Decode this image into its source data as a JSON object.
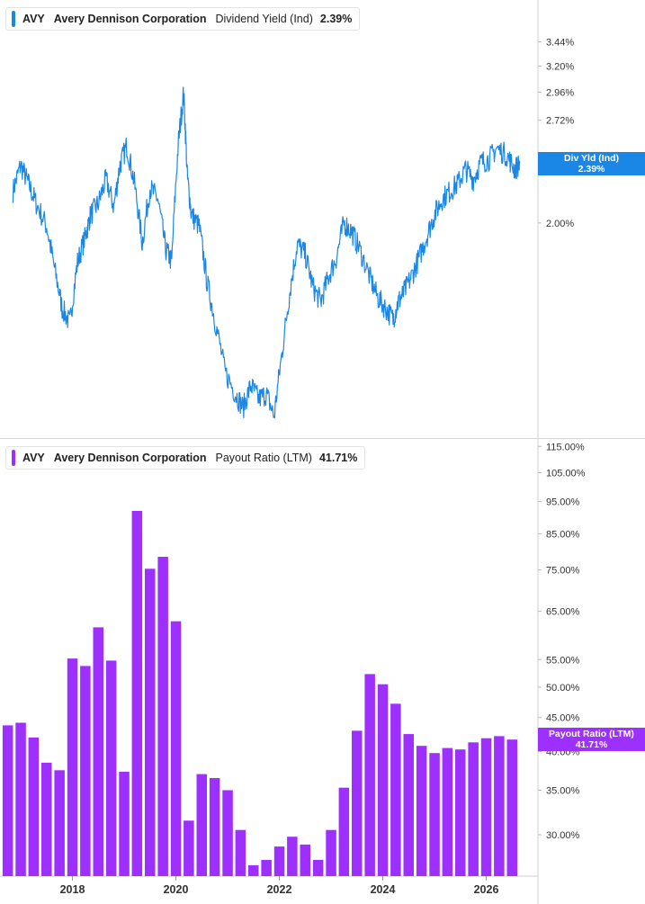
{
  "chart_data": [
    {
      "type": "line",
      "ticker": "AVY",
      "company": "Avery Dennison Corporation",
      "metric": "Dividend Yield (Ind)",
      "current_value": "2.39%",
      "tag_label": "Div Yld (Ind)",
      "tag_value": "2.39%",
      "color": "#1a87e6",
      "y_scale": "log",
      "ylim": [
        1.05,
        3.9
      ],
      "y_ticks": [
        {
          "v": 3.44,
          "label": "3.44%"
        },
        {
          "v": 3.2,
          "label": "3.20%"
        },
        {
          "v": 2.96,
          "label": "2.96%"
        },
        {
          "v": 2.72,
          "label": "2.72%"
        },
        {
          "v": 2.0,
          "label": "2.00%"
        }
      ],
      "x": [
        2016.85,
        2017.0,
        2017.15,
        2017.3,
        2017.5,
        2017.65,
        2017.8,
        2017.95,
        2018.1,
        2018.25,
        2018.35,
        2018.5,
        2018.65,
        2018.8,
        2018.92,
        2019.05,
        2019.2,
        2019.35,
        2019.5,
        2019.65,
        2019.8,
        2019.92,
        2020.05,
        2020.15,
        2020.22,
        2020.3,
        2020.45,
        2020.6,
        2020.75,
        2020.95,
        2021.15,
        2021.3,
        2021.45,
        2021.6,
        2021.75,
        2021.9,
        2022.05,
        2022.2,
        2022.35,
        2022.5,
        2022.65,
        2022.8,
        2022.95,
        2023.1,
        2023.25,
        2023.4,
        2023.55,
        2023.75,
        2023.9,
        2024.05,
        2024.2,
        2024.3,
        2024.4,
        2024.55,
        2024.7,
        2024.85,
        2025.0,
        2025.15,
        2025.3,
        2025.45,
        2025.6,
        2025.75,
        2025.9,
        2026.05,
        2026.2,
        2026.4,
        2026.55,
        2026.65
      ],
      "values": [
        2.2,
        2.38,
        2.25,
        2.12,
        1.98,
        1.75,
        1.55,
        1.48,
        1.78,
        1.92,
        2.05,
        2.12,
        2.28,
        2.1,
        2.38,
        2.52,
        2.25,
        1.88,
        2.22,
        2.15,
        1.85,
        1.78,
        2.55,
        2.95,
        2.3,
        2.05,
        1.98,
        1.68,
        1.5,
        1.28,
        1.2,
        1.15,
        1.23,
        1.18,
        1.2,
        1.12,
        1.35,
        1.62,
        1.88,
        1.82,
        1.65,
        1.58,
        1.7,
        1.8,
        2.0,
        1.95,
        1.85,
        1.7,
        1.6,
        1.55,
        1.5,
        1.58,
        1.62,
        1.7,
        1.8,
        1.92,
        2.05,
        2.15,
        2.2,
        2.25,
        2.35,
        2.28,
        2.4,
        2.42,
        2.5,
        2.45,
        2.35,
        2.39
      ]
    },
    {
      "type": "bar",
      "ticker": "AVY",
      "company": "Avery Dennison Corporation",
      "metric": "Payout Ratio (LTM)",
      "current_value": "41.71%",
      "tag_label": "Payout Ratio (LTM)",
      "tag_value": "41.71%",
      "color": "#9d2fff",
      "y_scale": "log",
      "ylim": [
        26,
        118
      ],
      "y_ticks": [
        {
          "v": 115,
          "label": "115.00%"
        },
        {
          "v": 105,
          "label": "105.00%"
        },
        {
          "v": 95,
          "label": "95.00%"
        },
        {
          "v": 85,
          "label": "85.00%"
        },
        {
          "v": 75,
          "label": "75.00%"
        },
        {
          "v": 65,
          "label": "65.00%"
        },
        {
          "v": 55,
          "label": "55.00%"
        },
        {
          "v": 50,
          "label": "50.00%"
        },
        {
          "v": 45,
          "label": "45.00%"
        },
        {
          "v": 40,
          "label": "40.00%"
        },
        {
          "v": 35,
          "label": "35.00%"
        },
        {
          "v": 30,
          "label": "30.00%"
        }
      ],
      "x": [
        2016.75,
        2017.0,
        2017.25,
        2017.5,
        2017.75,
        2018.0,
        2018.25,
        2018.5,
        2018.75,
        2019.0,
        2019.25,
        2019.5,
        2019.75,
        2020.0,
        2020.25,
        2020.5,
        2020.75,
        2021.0,
        2021.25,
        2021.5,
        2021.75,
        2022.0,
        2022.25,
        2022.5,
        2022.75,
        2023.0,
        2023.25,
        2023.5,
        2023.75,
        2024.0,
        2024.25,
        2024.5,
        2024.75,
        2025.0,
        2025.25,
        2025.5,
        2025.75,
        2026.0,
        2026.25,
        2026.5
      ],
      "values": [
        43.8,
        44.2,
        42.0,
        38.5,
        37.5,
        55.2,
        53.8,
        61.5,
        54.8,
        37.3,
        92.0,
        75.3,
        78.5,
        62.8,
        31.5,
        37.0,
        36.5,
        35.0,
        30.5,
        27.0,
        27.5,
        28.8,
        29.8,
        29.0,
        27.5,
        30.5,
        35.3,
        43.0,
        52.3,
        50.5,
        47.2,
        42.5,
        40.8,
        39.8,
        40.5,
        40.3,
        41.3,
        41.9,
        42.2,
        41.7
      ]
    }
  ],
  "x_axis": {
    "ticks": [
      {
        "v": 2018,
        "label": "2018"
      },
      {
        "v": 2020,
        "label": "2020"
      },
      {
        "v": 2022,
        "label": "2022"
      },
      {
        "v": 2024,
        "label": "2024"
      },
      {
        "v": 2026,
        "label": "2026"
      }
    ],
    "range": [
      2016.6,
      2027.0
    ]
  }
}
